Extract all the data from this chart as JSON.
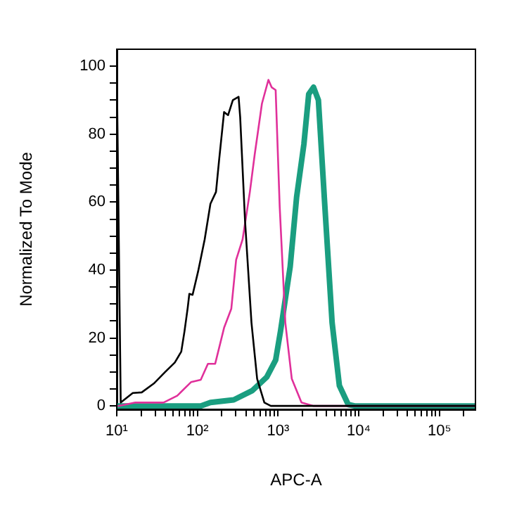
{
  "chart_data": {
    "type": "line",
    "xlabel": "APC-A",
    "ylabel": "Normalized To Mode",
    "log": "x",
    "xlim": [
      10,
      280000
    ],
    "ylim": [
      -1,
      105
    ],
    "xticks": [
      {
        "value": 10,
        "label": "10¹"
      },
      {
        "value": 20,
        "label": null
      },
      {
        "value": 30,
        "label": null
      },
      {
        "value": 40,
        "label": null
      },
      {
        "value": 50,
        "label": null
      },
      {
        "value": 60,
        "label": null
      },
      {
        "value": 70,
        "label": null
      },
      {
        "value": 80,
        "label": null
      },
      {
        "value": 90,
        "label": null
      },
      {
        "value": 100,
        "label": "10²"
      },
      {
        "value": 200,
        "label": null
      },
      {
        "value": 300,
        "label": null
      },
      {
        "value": 400,
        "label": null
      },
      {
        "value": 500,
        "label": null
      },
      {
        "value": 600,
        "label": null
      },
      {
        "value": 700,
        "label": null
      },
      {
        "value": 800,
        "label": null
      },
      {
        "value": 900,
        "label": null
      },
      {
        "value": 1000,
        "label": "10³"
      },
      {
        "value": 2000,
        "label": null
      },
      {
        "value": 3000,
        "label": null
      },
      {
        "value": 4000,
        "label": null
      },
      {
        "value": 5000,
        "label": null
      },
      {
        "value": 6000,
        "label": null
      },
      {
        "value": 7000,
        "label": null
      },
      {
        "value": 8000,
        "label": null
      },
      {
        "value": 9000,
        "label": null
      },
      {
        "value": 10000,
        "label": "10⁴"
      },
      {
        "value": 20000,
        "label": null
      },
      {
        "value": 30000,
        "label": null
      },
      {
        "value": 40000,
        "label": null
      },
      {
        "value": 50000,
        "label": null
      },
      {
        "value": 60000,
        "label": null
      },
      {
        "value": 70000,
        "label": null
      },
      {
        "value": 80000,
        "label": null
      },
      {
        "value": 90000,
        "label": null
      },
      {
        "value": 100000,
        "label": "10⁵"
      },
      {
        "value": 200000,
        "label": null
      }
    ],
    "yticks": [
      0,
      {
        "value": 5,
        "label": null
      },
      {
        "value": 10,
        "label": null
      },
      {
        "value": 15,
        "label": null
      },
      20,
      {
        "value": 25,
        "label": null
      },
      {
        "value": 30,
        "label": null
      },
      {
        "value": 35,
        "label": null
      },
      40,
      {
        "value": 45,
        "label": null
      },
      {
        "value": 50,
        "label": null
      },
      {
        "value": 55,
        "label": null
      },
      60,
      {
        "value": 65,
        "label": null
      },
      {
        "value": 70,
        "label": null
      },
      {
        "value": 75,
        "label": null
      },
      80,
      {
        "value": 85,
        "label": null
      },
      {
        "value": 90,
        "label": null
      },
      {
        "value": 95,
        "label": null
      },
      100
    ],
    "grid": false,
    "legend": false,
    "marker": "none",
    "line_style": "solid",
    "series": [
      {
        "color": "#000000",
        "x": [
          10,
          11.2,
          15.8,
          20.4,
          28.8,
          39.8,
          52.5,
          63.1,
          69.2,
          75.9,
          79.4,
          87.1,
          102,
          123,
          145,
          170,
          186,
          214,
          240,
          275,
          324,
          339,
          389,
          468,
          550,
          676,
          813,
          280000
        ],
        "values": [
          100,
          1,
          3.8,
          4,
          6.6,
          10,
          12.8,
          16,
          22,
          29,
          33,
          32.7,
          39.6,
          49,
          59.5,
          63,
          72.5,
          86.5,
          85.6,
          90,
          91,
          85,
          54.7,
          24.5,
          8,
          1,
          0,
          0
        ]
      },
      {
        "color": "#e0309a",
        "x": [
          10.5,
          17,
          38,
          56.2,
          83.2,
          110,
          135,
          166,
          214,
          263,
          302,
          363,
          447,
          513,
          631,
          759,
          832,
          933,
          1047,
          1230,
          1479,
          1950,
          2754,
          280000
        ],
        "values": [
          0,
          1,
          1,
          3,
          7,
          7.7,
          12.4,
          12.4,
          23,
          28.6,
          43,
          49,
          63,
          74,
          89,
          96,
          93.8,
          93,
          58.8,
          24.5,
          8,
          1,
          0,
          0
        ]
      },
      {
        "color": "#1a9e80",
        "x": [
          10,
          110,
          145,
          282,
          479,
          724,
          933,
          1072,
          1413,
          1698,
          2089,
          2399,
          2754,
          3162,
          3802,
          4677,
          5754,
          7413,
          8913,
          280000
        ],
        "values": [
          0,
          0,
          1,
          1.8,
          4.5,
          8.5,
          13.5,
          22,
          41,
          61.5,
          77,
          91.8,
          93.8,
          90,
          58.8,
          24.5,
          6,
          0.4,
          0,
          0
        ]
      }
    ]
  }
}
